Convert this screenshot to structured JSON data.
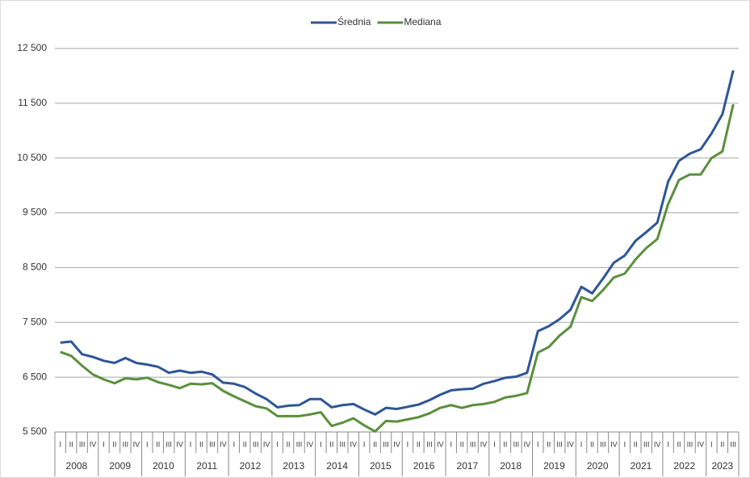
{
  "chart_data": {
    "type": "line",
    "categories": [
      "I",
      "II",
      "III",
      "IV",
      "I",
      "II",
      "III",
      "IV",
      "I",
      "II",
      "III",
      "IV",
      "I",
      "II",
      "III",
      "IV",
      "I",
      "II",
      "III",
      "IV",
      "I",
      "II",
      "III",
      "IV",
      "I",
      "II",
      "III",
      "IV",
      "I",
      "II",
      "III",
      "IV",
      "I",
      "II",
      "III",
      "IV",
      "I",
      "II",
      "III",
      "IV",
      "I",
      "II",
      "III",
      "IV",
      "I",
      "II",
      "III",
      "IV",
      "I",
      "II",
      "III",
      "IV",
      "I",
      "II",
      "III",
      "IV",
      "I",
      "II",
      "III",
      "IV",
      "I",
      "II",
      "III"
    ],
    "years": [
      "2008",
      "2009",
      "2010",
      "2011",
      "2012",
      "2013",
      "2014",
      "2015",
      "2016",
      "2017",
      "2018",
      "2019",
      "2020",
      "2021",
      "2022",
      "2023"
    ],
    "series": [
      {
        "name": "Średnia",
        "color": "#2e5597",
        "values": [
          7130,
          7150,
          6920,
          6870,
          6800,
          6760,
          6850,
          6760,
          6730,
          6690,
          6580,
          6620,
          6580,
          6600,
          6550,
          6400,
          6380,
          6320,
          6200,
          6100,
          5950,
          5980,
          5990,
          6100,
          6100,
          5950,
          5990,
          6010,
          5910,
          5820,
          5940,
          5920,
          5960,
          6000,
          6080,
          6180,
          6260,
          6280,
          6290,
          6380,
          6430,
          6490,
          6510,
          6580,
          7340,
          7430,
          7560,
          7730,
          8150,
          8030,
          8300,
          8590,
          8720,
          8990,
          9150,
          9320,
          10070,
          10450,
          10580,
          10660,
          10950,
          11300,
          12100
        ]
      },
      {
        "name": "Mediana",
        "color": "#5a8f3c",
        "values": [
          6960,
          6890,
          6710,
          6550,
          6460,
          6390,
          6480,
          6460,
          6490,
          6410,
          6360,
          6300,
          6380,
          6370,
          6390,
          6250,
          6150,
          6060,
          5970,
          5930,
          5790,
          5790,
          5790,
          5820,
          5860,
          5610,
          5670,
          5750,
          5620,
          5510,
          5700,
          5690,
          5730,
          5770,
          5840,
          5940,
          5990,
          5940,
          5990,
          6010,
          6050,
          6130,
          6160,
          6210,
          6950,
          7050,
          7260,
          7420,
          7960,
          7890,
          8090,
          8320,
          8390,
          8650,
          8860,
          9020,
          9660,
          10100,
          10200,
          10200,
          10500,
          10620,
          11480
        ]
      }
    ],
    "ylim": [
      5500,
      12500
    ],
    "yticks": [
      {
        "value": 5500,
        "label": "5 500"
      },
      {
        "value": 6500,
        "label": "6 500"
      },
      {
        "value": 7500,
        "label": "7 500"
      },
      {
        "value": 8500,
        "label": "8 500"
      },
      {
        "value": 9500,
        "label": "9 500"
      },
      {
        "value": 10500,
        "label": "10 500"
      },
      {
        "value": 11500,
        "label": "11 500"
      },
      {
        "value": 12500,
        "label": "12 500"
      }
    ],
    "grid": true,
    "legend": "top"
  }
}
